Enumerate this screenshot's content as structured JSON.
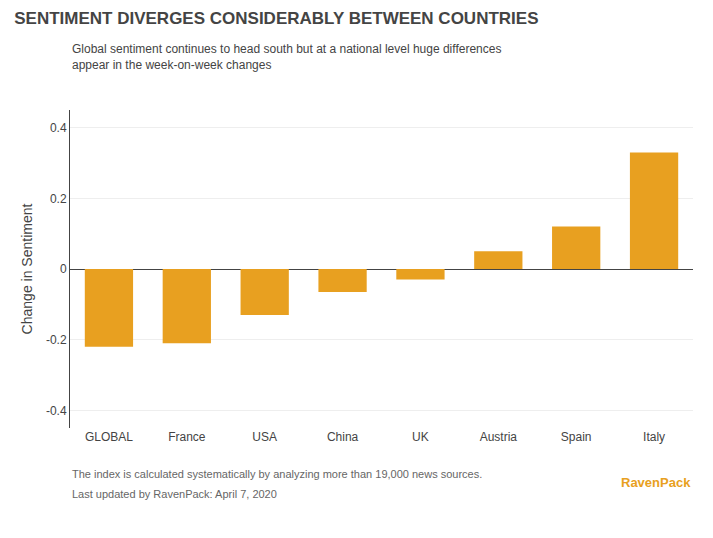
{
  "chart_data": {
    "type": "bar",
    "title": "SENTIMENT DIVERGES CONSIDERABLY BETWEEN COUNTRIES",
    "subtitle": [
      "Global sentiment continues to head south but at a national level huge differences",
      "appear in the week-on-week changes"
    ],
    "ylabel": "Change in Sentiment",
    "categories": [
      "GLOBAL",
      "France",
      "USA",
      "China",
      "UK",
      "Austria",
      "Spain",
      "Italy"
    ],
    "values": [
      -0.22,
      -0.21,
      -0.13,
      -0.065,
      -0.03,
      0.05,
      0.12,
      0.33
    ],
    "color": "#E8A020",
    "ylim": [
      -0.45,
      0.45
    ],
    "yticks": [
      -0.4,
      -0.2,
      0,
      0.2,
      0.4
    ],
    "grid": true,
    "annotations": [
      "The index is calculated systematically by analyzing more than 19,000 news sources.",
      "Last updated by RavenPack: April 7, 2020",
      "RavenPack"
    ]
  }
}
